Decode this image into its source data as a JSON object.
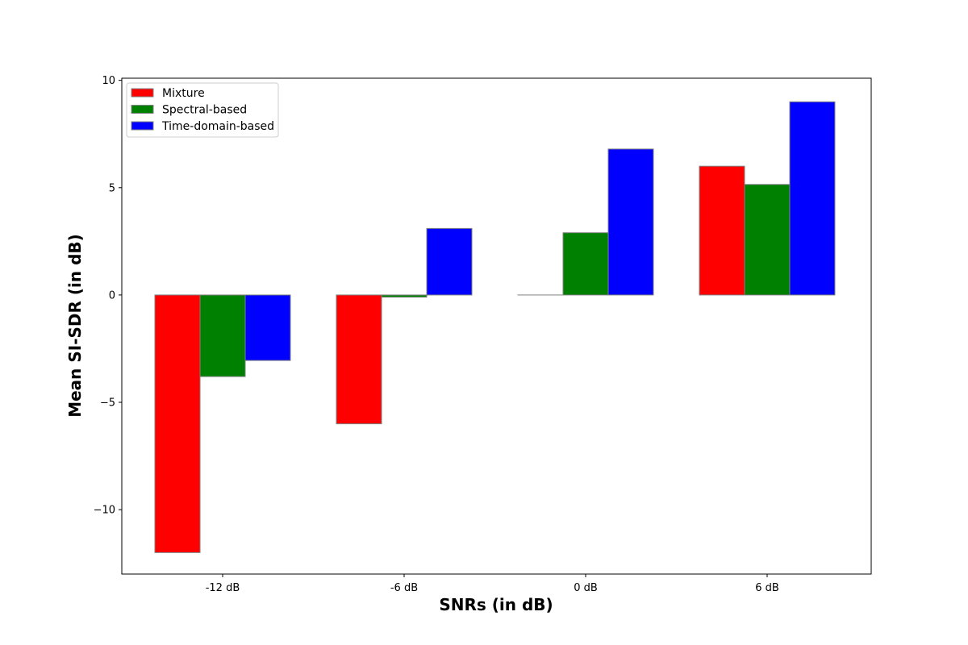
{
  "chart_data": {
    "type": "bar",
    "title": "",
    "xlabel": "SNRs (in dB)",
    "ylabel": "Mean SI-SDR (in dB)",
    "categories": [
      "-12 dB",
      "-6 dB",
      "0 dB",
      "6 dB"
    ],
    "series": [
      {
        "name": "Mixture",
        "color": "#ff0000",
        "values": [
          -12.0,
          -6.0,
          0.0,
          6.0
        ]
      },
      {
        "name": "Spectral-based",
        "color": "#008000",
        "values": [
          -3.8,
          -0.1,
          2.9,
          5.15
        ]
      },
      {
        "name": "Time-domain-based",
        "color": "#0000ff",
        "values": [
          -3.05,
          3.1,
          6.8,
          9.0
        ]
      }
    ],
    "ylim": [
      -13.0,
      10.1
    ],
    "yticks": [
      {
        "value": 10,
        "label": "10"
      },
      {
        "value": 5,
        "label": "5"
      },
      {
        "value": 0,
        "label": "0"
      },
      {
        "value": -5,
        "label": "−5"
      },
      {
        "value": -10,
        "label": "−10"
      }
    ],
    "grid": false,
    "legend_position": "top-left",
    "bar_edge_color": "#808080"
  }
}
